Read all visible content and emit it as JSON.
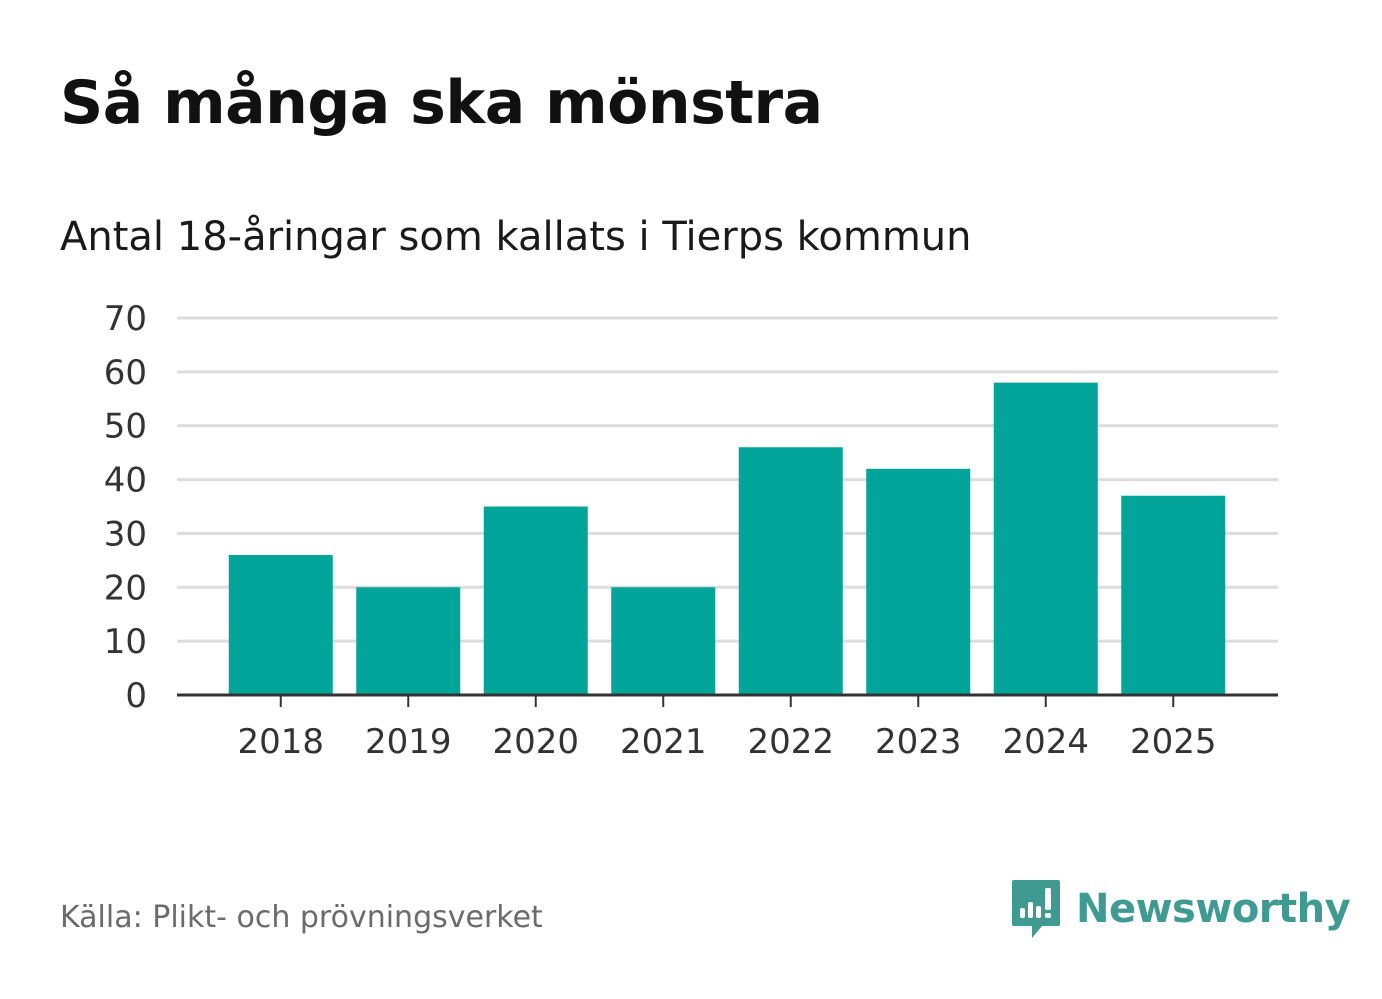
{
  "header": {
    "title": "Så många ska mönstra",
    "subtitle": "Antal 18-åringar som kallats i Tierps kommun"
  },
  "footer": {
    "source": "Källa: Plikt- och prövningsverket",
    "brand_name": "Newsworthy",
    "brand_icon": "newsworthy-logo-icon"
  },
  "colors": {
    "bar": "#00a499",
    "grid": "#dcdcdc",
    "axis": "#333333",
    "tick_text": "#333333",
    "brand": "#3f9b92"
  },
  "chart_data": {
    "type": "bar",
    "title": "Så många ska mönstra",
    "subtitle": "Antal 18-åringar som kallats i Tierps kommun",
    "xlabel": "",
    "ylabel": "",
    "categories": [
      "2018",
      "2019",
      "2020",
      "2021",
      "2022",
      "2023",
      "2024",
      "2025"
    ],
    "values": [
      26,
      20,
      35,
      20,
      46,
      42,
      58,
      37
    ],
    "ylim": [
      0,
      70
    ],
    "yticks": [
      0,
      10,
      20,
      30,
      40,
      50,
      60,
      70
    ],
    "grid": true,
    "legend": "none"
  }
}
